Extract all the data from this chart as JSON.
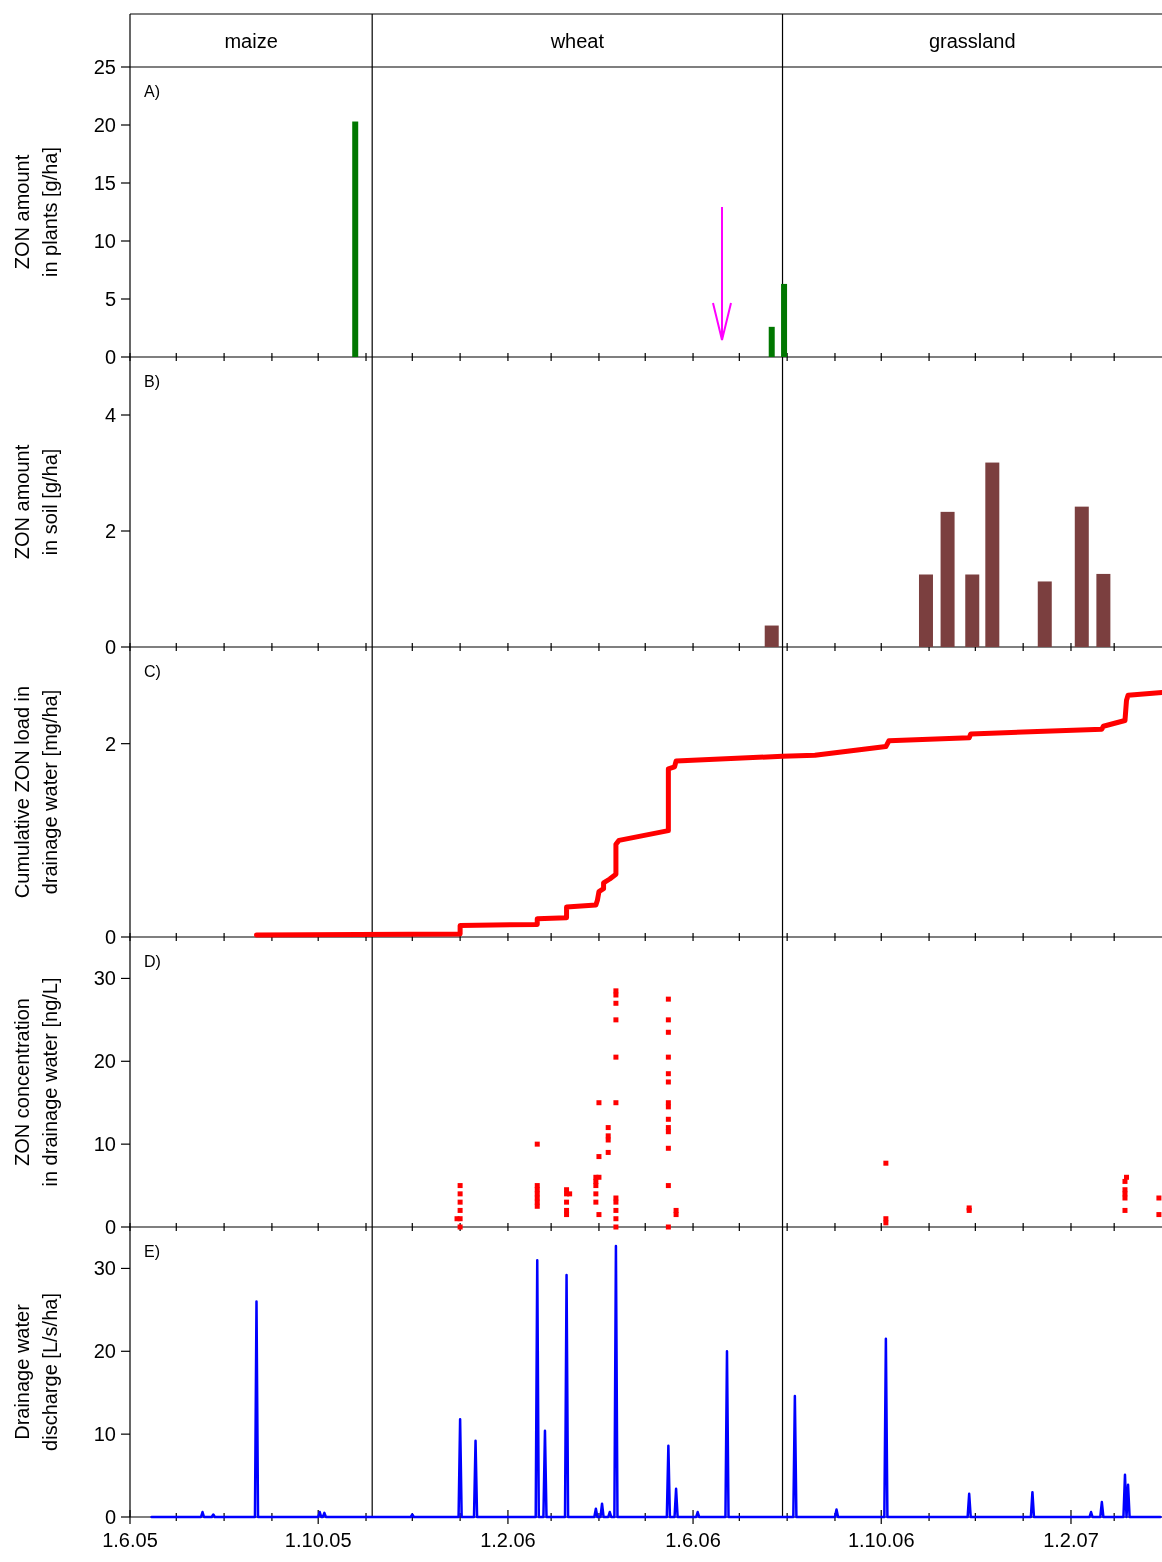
{
  "chart_data": [
    {
      "type": "bar",
      "ylabel": "ZON amount\nin plants [g/ha]",
      "tick_labels": "y",
      "annotations": [
        "A)",
        "maize",
        "wheat",
        "grassland"
      ],
      "ref_lines": [
        {
          "axis": "x",
          "value": "2005-11-05"
        },
        {
          "axis": "x",
          "value": "2006-07-29"
        }
      ],
      "xlim": [
        "2005-06-01",
        "2007-04-01"
      ],
      "xticks": [
        {
          "value": "2005-06-01",
          "label": null
        },
        {
          "value": "2005-07-01",
          "label": null
        },
        {
          "value": "2005-08-01",
          "label": null
        },
        {
          "value": "2005-09-01",
          "label": null
        },
        {
          "value": "2005-10-01",
          "label": null
        },
        {
          "value": "2005-11-01",
          "label": null
        },
        {
          "value": "2005-12-01",
          "label": null
        },
        {
          "value": "2006-01-01",
          "label": null
        },
        {
          "value": "2006-02-01",
          "label": null
        },
        {
          "value": "2006-03-01",
          "label": null
        },
        {
          "value": "2006-04-01",
          "label": null
        },
        {
          "value": "2006-05-01",
          "label": null
        },
        {
          "value": "2006-06-01",
          "label": null
        },
        {
          "value": "2006-07-01",
          "label": null
        },
        {
          "value": "2006-08-01",
          "label": null
        },
        {
          "value": "2006-09-01",
          "label": null
        },
        {
          "value": "2006-10-01",
          "label": null
        },
        {
          "value": "2006-11-01",
          "label": null
        },
        {
          "value": "2006-12-01",
          "label": null
        },
        {
          "value": "2007-01-01",
          "label": null
        },
        {
          "value": "2007-02-01",
          "label": null
        },
        {
          "value": "2007-03-01",
          "label": null
        }
      ],
      "ylim": [
        0,
        25
      ],
      "yticks": [
        0,
        5,
        10,
        15,
        20,
        25
      ],
      "series": [
        {
          "color": "#007700",
          "x": [
            "2005-10-25",
            "2006-07-22",
            "2006-07-30"
          ],
          "values": [
            20.3,
            2.6,
            6.3
          ]
        }
      ]
    },
    {
      "type": "bar",
      "ylabel": "ZON amount\nin soil [g/ha]",
      "annotations": [
        "B)"
      ],
      "tick_labels": "y",
      "ref_lines": [
        {
          "axis": "x",
          "value": "2005-11-05"
        },
        {
          "axis": "x",
          "value": "2006-07-29"
        }
      ],
      "xlim": [
        "2005-06-01",
        "2007-04-01"
      ],
      "xticks": [
        {
          "value": "2005-06-01",
          "label": null
        },
        {
          "value": "2005-07-01",
          "label": null
        },
        {
          "value": "2005-08-01",
          "label": null
        },
        {
          "value": "2005-09-01",
          "label": null
        },
        {
          "value": "2005-10-01",
          "label": null
        },
        {
          "value": "2005-11-01",
          "label": null
        },
        {
          "value": "2005-12-01",
          "label": null
        },
        {
          "value": "2006-01-01",
          "label": null
        },
        {
          "value": "2006-02-01",
          "label": null
        },
        {
          "value": "2006-03-01",
          "label": null
        },
        {
          "value": "2006-04-01",
          "label": null
        },
        {
          "value": "2006-05-01",
          "label": null
        },
        {
          "value": "2006-06-01",
          "label": null
        },
        {
          "value": "2006-07-01",
          "label": null
        },
        {
          "value": "2006-08-01",
          "label": null
        },
        {
          "value": "2006-09-01",
          "label": null
        },
        {
          "value": "2006-10-01",
          "label": null
        },
        {
          "value": "2006-11-01",
          "label": null
        },
        {
          "value": "2006-12-01",
          "label": null
        },
        {
          "value": "2007-01-01",
          "label": null
        },
        {
          "value": "2007-02-01",
          "label": null
        },
        {
          "value": "2007-03-01",
          "label": null
        }
      ],
      "ylim": [
        0,
        5
      ],
      "yticks": [
        0,
        2,
        4
      ],
      "series": [
        {
          "color": "#7b3f3f",
          "x": [
            "2006-07-22",
            "2006-10-30",
            "2006-11-13",
            "2006-11-29",
            "2006-12-12",
            "2007-01-15",
            "2007-02-08",
            "2007-02-22"
          ],
          "values": [
            0.37,
            1.25,
            2.33,
            1.25,
            3.18,
            1.13,
            2.42,
            1.26
          ]
        }
      ]
    },
    {
      "type": "line",
      "ylabel": "Cumulative ZON load in\ndrainage water [mg/ha]",
      "annotations": [
        "C)"
      ],
      "tick_labels": "y",
      "ref_lines": [
        {
          "axis": "x",
          "value": "2005-11-05"
        },
        {
          "axis": "x",
          "value": "2006-07-29"
        }
      ],
      "xlim": [
        "2005-06-01",
        "2007-04-01"
      ],
      "xticks": [
        {
          "value": "2005-06-01",
          "label": null
        },
        {
          "value": "2005-07-01",
          "label": null
        },
        {
          "value": "2005-08-01",
          "label": null
        },
        {
          "value": "2005-09-01",
          "label": null
        },
        {
          "value": "2005-10-01",
          "label": null
        },
        {
          "value": "2005-11-01",
          "label": null
        },
        {
          "value": "2005-12-01",
          "label": null
        },
        {
          "value": "2006-01-01",
          "label": null
        },
        {
          "value": "2006-02-01",
          "label": null
        },
        {
          "value": "2006-03-01",
          "label": null
        },
        {
          "value": "2006-04-01",
          "label": null
        },
        {
          "value": "2006-05-01",
          "label": null
        },
        {
          "value": "2006-06-01",
          "label": null
        },
        {
          "value": "2006-07-01",
          "label": null
        },
        {
          "value": "2006-08-01",
          "label": null
        },
        {
          "value": "2006-09-01",
          "label": null
        },
        {
          "value": "2006-10-01",
          "label": null
        },
        {
          "value": "2006-11-01",
          "label": null
        },
        {
          "value": "2006-12-01",
          "label": null
        },
        {
          "value": "2007-01-01",
          "label": null
        },
        {
          "value": "2007-02-01",
          "label": null
        },
        {
          "value": "2007-03-01",
          "label": null
        }
      ],
      "ylim": [
        0,
        3
      ],
      "yticks": [
        0,
        2
      ],
      "series": [
        {
          "color": "#ff0000",
          "x": [
            "2005-08-22",
            "2006-01-01",
            "2006-01-01",
            "2006-02-20",
            "2006-02-20",
            "2006-03-11",
            "2006-03-11",
            "2006-03-30",
            "2006-03-31",
            "2006-04-01",
            "2006-04-04",
            "2006-04-04",
            "2006-04-08",
            "2006-04-12",
            "2006-04-12",
            "2006-04-14",
            "2006-05-16",
            "2006-05-16",
            "2006-05-20",
            "2006-05-21",
            "2006-07-29",
            "2006-08-19",
            "2006-10-04",
            "2006-10-06",
            "2006-11-27",
            "2006-11-28",
            "2007-02-21",
            "2007-02-22",
            "2007-03-08",
            "2007-03-09",
            "2007-03-10",
            "2007-04-01"
          ],
          "values": [
            0.02,
            0.03,
            0.12,
            0.13,
            0.19,
            0.2,
            0.31,
            0.33,
            0.38,
            0.47,
            0.5,
            0.56,
            0.6,
            0.65,
            0.96,
            1.0,
            1.1,
            1.74,
            1.76,
            1.82,
            1.87,
            1.88,
            1.97,
            2.03,
            2.06,
            2.1,
            2.15,
            2.18,
            2.24,
            2.45,
            2.5,
            2.53
          ]
        }
      ]
    },
    {
      "type": "scatter",
      "marker": "square",
      "ylabel": "ZON concentration\nin drainage water [ng/L]",
      "annotations": [
        "D)"
      ],
      "tick_labels": "y",
      "ref_lines": [
        {
          "axis": "x",
          "value": "2005-11-05"
        },
        {
          "axis": "x",
          "value": "2006-07-29"
        }
      ],
      "xlim": [
        "2005-06-01",
        "2007-04-01"
      ],
      "xticks": [
        {
          "value": "2005-06-01",
          "label": null
        },
        {
          "value": "2005-07-01",
          "label": null
        },
        {
          "value": "2005-08-01",
          "label": null
        },
        {
          "value": "2005-09-01",
          "label": null
        },
        {
          "value": "2005-10-01",
          "label": null
        },
        {
          "value": "2005-11-01",
          "label": null
        },
        {
          "value": "2005-12-01",
          "label": null
        },
        {
          "value": "2006-01-01",
          "label": null
        },
        {
          "value": "2006-02-01",
          "label": null
        },
        {
          "value": "2006-03-01",
          "label": null
        },
        {
          "value": "2006-04-01",
          "label": null
        },
        {
          "value": "2006-05-01",
          "label": null
        },
        {
          "value": "2006-06-01",
          "label": null
        },
        {
          "value": "2006-07-01",
          "label": null
        },
        {
          "value": "2006-08-01",
          "label": null
        },
        {
          "value": "2006-09-01",
          "label": null
        },
        {
          "value": "2006-10-01",
          "label": null
        },
        {
          "value": "2006-11-01",
          "label": null
        },
        {
          "value": "2006-12-01",
          "label": null
        },
        {
          "value": "2007-01-01",
          "label": null
        },
        {
          "value": "2007-02-01",
          "label": null
        },
        {
          "value": "2007-03-01",
          "label": null
        }
      ],
      "ylim": [
        0,
        35
      ],
      "yticks": [
        0,
        10,
        20,
        30
      ],
      "series": [
        {
          "color": "#ff0000",
          "x": [
            "2005-12-30",
            "2006-01-01",
            "2006-01-01",
            "2006-01-01",
            "2006-01-01",
            "2006-01-01",
            "2006-01-01",
            "2006-02-20",
            "2006-02-20",
            "2006-02-20",
            "2006-02-20",
            "2006-02-20",
            "2006-02-20",
            "2006-02-20",
            "2006-03-11",
            "2006-03-11",
            "2006-03-11",
            "2006-03-11",
            "2006-03-11",
            "2006-03-13",
            "2006-03-30",
            "2006-03-30",
            "2006-03-30",
            "2006-03-30",
            "2006-03-30",
            "2006-04-01",
            "2006-04-01",
            "2006-04-01",
            "2006-04-01",
            "2006-04-07",
            "2006-04-07",
            "2006-04-07",
            "2006-04-07",
            "2006-04-12",
            "2006-04-12",
            "2006-04-12",
            "2006-04-12",
            "2006-04-12",
            "2006-04-12",
            "2006-04-12",
            "2006-04-12",
            "2006-04-12",
            "2006-04-12",
            "2006-04-12",
            "2006-05-16",
            "2006-05-16",
            "2006-05-16",
            "2006-05-16",
            "2006-05-16",
            "2006-05-16",
            "2006-05-16",
            "2006-05-16",
            "2006-05-16",
            "2006-05-16",
            "2006-05-16",
            "2006-05-16",
            "2006-05-16",
            "2006-05-16",
            "2006-05-21",
            "2006-05-21",
            "2006-10-04",
            "2006-10-04",
            "2006-10-04",
            "2006-11-27",
            "2006-11-27",
            "2007-03-08",
            "2007-03-08",
            "2007-03-08",
            "2007-03-08",
            "2007-03-08",
            "2007-03-09",
            "2007-03-30",
            "2007-03-30"
          ],
          "values": [
            1,
            0,
            1,
            2,
            3,
            4,
            5,
            10,
            5,
            4.5,
            4,
            3.5,
            3,
            2.5,
            4.5,
            4,
            3,
            2,
            1.5,
            4,
            6,
            5.5,
            5,
            4,
            3,
            15,
            8.5,
            6,
            1.5,
            12,
            11,
            10.5,
            9,
            28.5,
            28,
            27,
            25,
            20.5,
            15,
            3.5,
            3,
            2,
            1,
            0,
            27.5,
            25,
            23.5,
            20.5,
            18.5,
            17.5,
            15,
            14.5,
            13,
            12,
            11.5,
            9.5,
            5,
            0,
            2,
            1.5,
            7.7,
            1,
            0.5,
            2.3,
            2,
            5.5,
            4.5,
            4,
            3.5,
            2,
            6,
            3.5,
            1.5
          ]
        }
      ]
    },
    {
      "type": "line",
      "ylabel": "Drainage water\ndischarge [L/s/ha]",
      "annotations": [
        "E)"
      ],
      "ref_lines": [
        {
          "axis": "x",
          "value": "2005-11-05"
        },
        {
          "axis": "x",
          "value": "2006-07-29"
        }
      ],
      "xlim": [
        "2005-06-01",
        "2007-04-01"
      ],
      "xticks": [
        {
          "value": "2005-06-01",
          "label": "1.6.05"
        },
        {
          "value": "2005-07-01",
          "label": null
        },
        {
          "value": "2005-08-01",
          "label": null
        },
        {
          "value": "2005-09-01",
          "label": null
        },
        {
          "value": "2005-10-01",
          "label": "1.10.05"
        },
        {
          "value": "2005-11-01",
          "label": null
        },
        {
          "value": "2005-12-01",
          "label": null
        },
        {
          "value": "2006-01-01",
          "label": null
        },
        {
          "value": "2006-02-01",
          "label": "1.2.06"
        },
        {
          "value": "2006-03-01",
          "label": null
        },
        {
          "value": "2006-04-01",
          "label": null
        },
        {
          "value": "2006-05-01",
          "label": null
        },
        {
          "value": "2006-06-01",
          "label": "1.6.06"
        },
        {
          "value": "2006-07-01",
          "label": null
        },
        {
          "value": "2006-08-01",
          "label": null
        },
        {
          "value": "2006-09-01",
          "label": null
        },
        {
          "value": "2006-10-01",
          "label": "1.10.06"
        },
        {
          "value": "2006-11-01",
          "label": null
        },
        {
          "value": "2006-12-01",
          "label": null
        },
        {
          "value": "2007-01-01",
          "label": null
        },
        {
          "value": "2007-02-01",
          "label": "1.2.07"
        },
        {
          "value": "2007-03-01",
          "label": null
        }
      ],
      "ylim": [
        0,
        35
      ],
      "yticks": [
        0,
        10,
        20,
        30
      ],
      "series": [
        {
          "color": "#0000ff",
          "x": [
            "2005-06-15",
            "2005-07-17",
            "2005-07-18",
            "2005-07-19",
            "2005-07-24",
            "2005-07-25",
            "2005-07-26",
            "2005-08-21",
            "2005-08-22",
            "2005-08-23",
            "2005-10-01",
            "2005-10-02",
            "2005-10-03",
            "2005-10-04",
            "2005-10-05",
            "2005-10-06",
            "2005-11-30",
            "2005-12-01",
            "2005-12-02",
            "2005-12-31",
            "2006-01-01",
            "2006-01-02",
            "2006-01-10",
            "2006-01-11",
            "2006-01-12",
            "2006-02-19",
            "2006-02-20",
            "2006-02-21",
            "2006-02-24",
            "2006-02-25",
            "2006-02-26",
            "2006-03-10",
            "2006-03-11",
            "2006-03-12",
            "2006-03-29",
            "2006-03-30",
            "2006-03-31",
            "2006-04-02",
            "2006-04-03",
            "2006-04-04",
            "2006-04-07",
            "2006-04-08",
            "2006-04-09",
            "2006-04-11",
            "2006-04-12",
            "2006-04-13",
            "2006-05-15",
            "2006-05-16",
            "2006-05-17",
            "2006-05-20",
            "2006-05-21",
            "2006-05-22",
            "2006-06-03",
            "2006-06-04",
            "2006-06-05",
            "2006-06-22",
            "2006-06-23",
            "2006-06-24",
            "2006-08-05",
            "2006-08-06",
            "2006-08-07",
            "2006-09-01",
            "2006-09-02",
            "2006-09-03",
            "2006-10-03",
            "2006-10-04",
            "2006-10-05",
            "2006-11-26",
            "2006-11-27",
            "2006-11-28",
            "2007-01-06",
            "2007-01-07",
            "2007-01-08",
            "2007-02-13",
            "2007-02-14",
            "2007-02-15",
            "2007-02-20",
            "2007-02-21",
            "2007-02-22",
            "2007-03-07",
            "2007-03-08",
            "2007-03-09",
            "2007-03-10",
            "2007-03-11",
            "2007-03-31"
          ],
          "values": [
            0,
            0,
            0.6,
            0,
            0,
            0.3,
            0,
            0,
            26,
            0,
            0,
            0.6,
            0,
            0,
            0.5,
            0,
            0,
            0.3,
            0,
            0,
            11.8,
            0,
            0,
            9.2,
            0,
            0,
            31,
            0,
            0,
            10.4,
            0,
            0,
            29.2,
            0,
            0,
            1,
            0,
            0,
            1.6,
            0,
            0,
            0.6,
            0,
            0,
            32.7,
            0,
            0,
            8.6,
            0,
            0,
            3.4,
            0,
            0,
            0.6,
            0,
            0,
            20,
            0,
            0,
            14.6,
            0,
            0,
            0.9,
            0,
            0,
            21.5,
            0,
            0,
            2.8,
            0,
            0,
            3,
            0,
            0,
            0.6,
            0,
            0,
            1.8,
            0,
            0,
            5.1,
            0,
            3.9,
            0,
            0
          ]
        }
      ]
    }
  ]
}
